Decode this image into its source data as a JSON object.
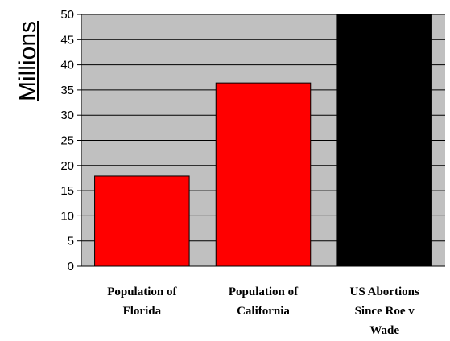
{
  "chart_data": {
    "type": "bar",
    "ylabel": "Millions",
    "ylim": [
      0,
      50
    ],
    "yticks": [
      0,
      5,
      10,
      15,
      20,
      25,
      30,
      35,
      40,
      45,
      50
    ],
    "grid": true,
    "legend": "none",
    "categories": [
      [
        "Population of",
        "Florida"
      ],
      [
        "Population of",
        "California"
      ],
      [
        "US Abortions",
        "Since Roe v",
        "Wade"
      ]
    ],
    "values": [
      17.9,
      36.4,
      50
    ],
    "bar_colors": [
      "#ff0000",
      "#ff0000",
      "#000000"
    ],
    "plot_background": "#c0c0c0"
  }
}
